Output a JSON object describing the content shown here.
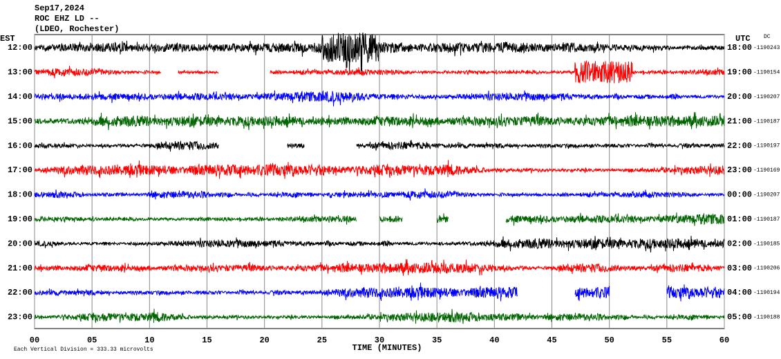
{
  "header": {
    "date": "Sep17,2024",
    "station": "ROC EHZ LD --",
    "network": "(LDEO, Rochester)"
  },
  "chart_data": {
    "type": "helicorder",
    "left_axis_label": "EST",
    "right_axis_label": "UTC",
    "dc_label": "DC",
    "rows": [
      {
        "est": "12:00",
        "utc": "18:00",
        "dc": "-1190243",
        "color": "#000000",
        "gaps": []
      },
      {
        "est": "13:00",
        "utc": "19:00",
        "dc": "-1190154",
        "color": "#ff0000",
        "gaps": [
          [
            11,
            12.5
          ],
          [
            16,
            20.5
          ]
        ]
      },
      {
        "est": "14:00",
        "utc": "20:00",
        "dc": "-1190207",
        "color": "#0000ff",
        "gaps": []
      },
      {
        "est": "15:00",
        "utc": "21:00",
        "dc": "-1190187",
        "color": "#006400",
        "gaps": []
      },
      {
        "est": "16:00",
        "utc": "22:00",
        "dc": "-1190197",
        "color": "#000000",
        "gaps": [
          [
            16,
            22
          ],
          [
            23.5,
            28
          ]
        ]
      },
      {
        "est": "17:00",
        "utc": "23:00",
        "dc": "-1190169",
        "color": "#ff0000",
        "gaps": []
      },
      {
        "est": "18:00",
        "utc": "00:00",
        "dc": "-1190207",
        "color": "#0000ff",
        "gaps": []
      },
      {
        "est": "19:00",
        "utc": "01:00",
        "dc": "-1190187",
        "color": "#006400",
        "gaps": [
          [
            28,
            30
          ],
          [
            32,
            35
          ],
          [
            36,
            41
          ]
        ]
      },
      {
        "est": "20:00",
        "utc": "02:00",
        "dc": "-1190185",
        "color": "#000000",
        "gaps": []
      },
      {
        "est": "21:00",
        "utc": "03:00",
        "dc": "-1190206",
        "color": "#ff0000",
        "gaps": []
      },
      {
        "est": "22:00",
        "utc": "04:00",
        "dc": "-1190194",
        "color": "#0000ff",
        "gaps": [
          [
            42,
            47
          ],
          [
            50,
            55
          ]
        ]
      },
      {
        "est": "23:00",
        "utc": "05:00",
        "dc": "-1190188",
        "color": "#006400",
        "gaps": []
      }
    ],
    "x_label": "TIME (MINUTES)",
    "xlim": [
      0,
      60
    ],
    "xticks": [
      {
        "value": 0,
        "label": "00"
      },
      {
        "value": 5,
        "label": "05"
      },
      10,
      15,
      20,
      25,
      30,
      35,
      40,
      45,
      50,
      55,
      60
    ],
    "scale_note": "Each Vertical Division =  333.33 microvolts"
  }
}
